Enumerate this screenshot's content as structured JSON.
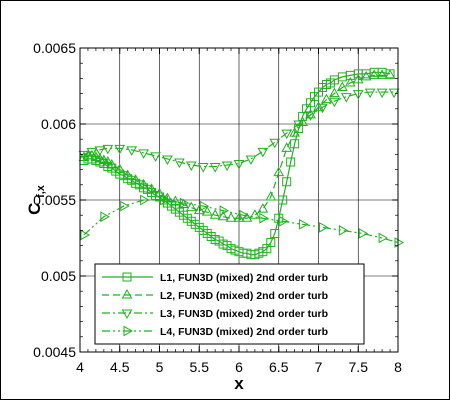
{
  "chart_data": {
    "type": "line",
    "xlabel": "x",
    "ylabel_main": "C",
    "ylabel_sub": "f,x",
    "xlim": [
      4,
      8
    ],
    "ylim": [
      0.0045,
      0.0065
    ],
    "x_ticks": [
      4,
      4.5,
      5,
      5.5,
      6,
      6.5,
      7,
      7.5,
      8
    ],
    "x_tick_labels": [
      "4",
      "4.5",
      "5",
      "5.5",
      "6",
      "6.5",
      "7",
      "7.5",
      "8"
    ],
    "y_ticks": [
      0.0045,
      0.005,
      0.0055,
      0.006,
      0.0065
    ],
    "y_tick_labels": [
      "0.0045",
      "0.005",
      "0.0055",
      "0.006",
      "0.0065"
    ],
    "grid": true,
    "legend_position": "bottom-center",
    "series": [
      {
        "name": "L1, FUN3D (mixed) 2nd order turb",
        "color": "#22b022",
        "dash": "solid",
        "marker": "square",
        "x": [
          4.05,
          4.1,
          4.15,
          4.2,
          4.25,
          4.3,
          4.35,
          4.4,
          4.45,
          4.5,
          4.55,
          4.6,
          4.65,
          4.7,
          4.75,
          4.8,
          4.85,
          4.9,
          4.95,
          5.0,
          5.05,
          5.1,
          5.15,
          5.2,
          5.25,
          5.3,
          5.35,
          5.4,
          5.45,
          5.5,
          5.55,
          5.6,
          5.65,
          5.7,
          5.75,
          5.8,
          5.85,
          5.9,
          5.95,
          6.0,
          6.05,
          6.1,
          6.15,
          6.2,
          6.25,
          6.3,
          6.35,
          6.4,
          6.45,
          6.5,
          6.55,
          6.6,
          6.65,
          6.7,
          6.75,
          6.8,
          6.85,
          6.9,
          6.95,
          7.0,
          7.05,
          7.1,
          7.15,
          7.2,
          7.3,
          7.4,
          7.5,
          7.6,
          7.7,
          7.8,
          7.9
        ],
        "y": [
          0.00576,
          0.00577,
          0.00577,
          0.00576,
          0.00575,
          0.00574,
          0.00572,
          0.00571,
          0.00569,
          0.00567,
          0.00566,
          0.00564,
          0.00563,
          0.00561,
          0.0056,
          0.00558,
          0.00557,
          0.00555,
          0.00553,
          0.00552,
          0.0055,
          0.00548,
          0.00546,
          0.00544,
          0.00542,
          0.0054,
          0.00538,
          0.00536,
          0.00534,
          0.00532,
          0.0053,
          0.00528,
          0.00526,
          0.00524,
          0.00523,
          0.00521,
          0.0052,
          0.00518,
          0.00517,
          0.00516,
          0.00515,
          0.00515,
          0.00514,
          0.00514,
          0.00515,
          0.00516,
          0.00518,
          0.00522,
          0.00528,
          0.00538,
          0.0055,
          0.00562,
          0.00575,
          0.00587,
          0.00597,
          0.00605,
          0.0061,
          0.00614,
          0.00618,
          0.00621,
          0.00624,
          0.00626,
          0.00627,
          0.00629,
          0.00631,
          0.00632,
          0.00633,
          0.00633,
          0.00634,
          0.00634,
          0.00633
        ]
      },
      {
        "name": "L2, FUN3D (mixed) 2nd order turb",
        "color": "#22b022",
        "dash": "dashed",
        "marker": "triangle-up",
        "x": [
          4.05,
          4.1,
          4.15,
          4.2,
          4.25,
          4.3,
          4.35,
          4.4,
          4.5,
          4.6,
          4.7,
          4.8,
          4.9,
          5.0,
          5.1,
          5.2,
          5.3,
          5.4,
          5.5,
          5.6,
          5.7,
          5.8,
          5.9,
          6.0,
          6.1,
          6.2,
          6.3,
          6.4,
          6.5,
          6.6,
          6.7,
          6.8,
          6.9,
          7.0,
          7.1,
          7.2,
          7.3,
          7.4,
          7.5,
          7.6,
          7.7,
          7.8,
          7.9
        ],
        "y": [
          0.00578,
          0.00579,
          0.00579,
          0.00578,
          0.00577,
          0.00576,
          0.00575,
          0.00573,
          0.0057,
          0.00566,
          0.00563,
          0.0056,
          0.00557,
          0.00554,
          0.00551,
          0.00549,
          0.00547,
          0.00545,
          0.00543,
          0.00542,
          0.0054,
          0.00539,
          0.00538,
          0.00538,
          0.00538,
          0.0054,
          0.00544,
          0.00552,
          0.00568,
          0.00584,
          0.00594,
          0.00601,
          0.00606,
          0.00611,
          0.00616,
          0.0062,
          0.00624,
          0.00627,
          0.00629,
          0.00631,
          0.00632,
          0.00632,
          0.00632
        ]
      },
      {
        "name": "L3, FUN3D (mixed) 2nd order turb",
        "color": "#22b022",
        "dash": "dashdot",
        "marker": "triangle-down",
        "x": [
          4.05,
          4.15,
          4.25,
          4.35,
          4.5,
          4.65,
          4.8,
          4.95,
          5.1,
          5.25,
          5.4,
          5.55,
          5.7,
          5.85,
          6.0,
          6.15,
          6.3,
          6.45,
          6.6,
          6.75,
          6.9,
          7.05,
          7.2,
          7.35,
          7.5,
          7.65,
          7.8,
          7.95
        ],
        "y": [
          0.0058,
          0.00582,
          0.00583,
          0.00584,
          0.00584,
          0.00583,
          0.00581,
          0.00579,
          0.00577,
          0.00575,
          0.00573,
          0.00572,
          0.00572,
          0.00573,
          0.00574,
          0.00577,
          0.00582,
          0.00588,
          0.00594,
          0.006,
          0.00606,
          0.00611,
          0.00615,
          0.00618,
          0.0062,
          0.00621,
          0.00621,
          0.00621
        ]
      },
      {
        "name": "L4, FUN3D (mixed) 2nd order turb",
        "color": "#22b022",
        "dash": "dashdotdot",
        "marker": "triangle-right",
        "x": [
          4.05,
          4.3,
          4.55,
          4.8,
          5.05,
          5.3,
          5.55,
          5.8,
          6.05,
          6.3,
          6.55,
          6.8,
          7.05,
          7.3,
          7.55,
          7.8,
          8.0
        ],
        "y": [
          0.00527,
          0.00539,
          0.00546,
          0.0055,
          0.0055,
          0.00548,
          0.00546,
          0.00543,
          0.0054,
          0.00538,
          0.00536,
          0.00534,
          0.00532,
          0.0053,
          0.00528,
          0.00525,
          0.00522
        ]
      }
    ]
  }
}
